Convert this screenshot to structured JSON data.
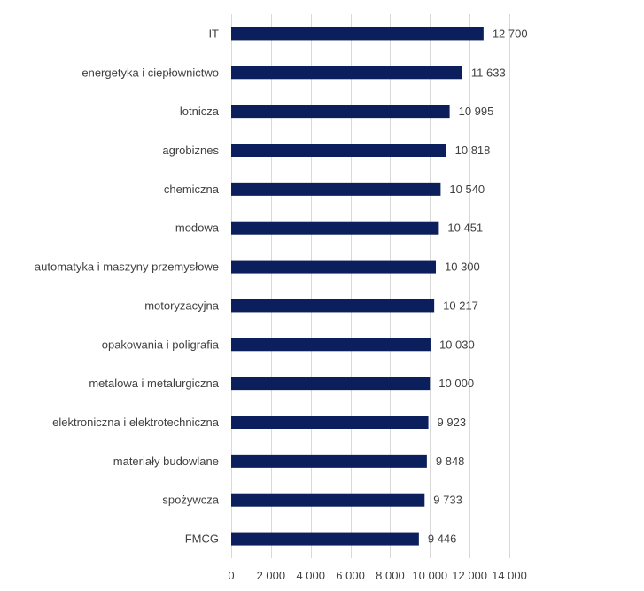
{
  "chart_data": {
    "type": "bar",
    "orientation": "horizontal",
    "title": "",
    "xlabel": "",
    "ylabel": "",
    "categories": [
      "IT",
      "energetyka i ciepłownictwo",
      "lotnicza",
      "agrobiznes",
      "chemiczna",
      "modowa",
      "automatyka i maszyny przemysłowe",
      "motoryzacyjna",
      "opakowania i poligrafia",
      "metalowa i metalurgiczna",
      "elektroniczna i elektrotechniczna",
      "materiały budowlane",
      "spożywcza",
      "FMCG"
    ],
    "values": [
      12700,
      11633,
      10995,
      10818,
      10540,
      10451,
      10300,
      10217,
      10030,
      10000,
      9923,
      9848,
      9733,
      9446
    ],
    "value_labels": [
      "12 700",
      "11 633",
      "10 995",
      "10 818",
      "10 540",
      "10 451",
      "10 300",
      "10 217",
      "10 030",
      "10 000",
      "9 923",
      "9 848",
      "9 733",
      "9 446"
    ],
    "xlim": [
      0,
      14000
    ],
    "xticks": [
      0,
      2000,
      4000,
      6000,
      8000,
      10000,
      12000,
      14000
    ],
    "xtick_labels": [
      "0",
      "2 000",
      "4 000",
      "6 000",
      "8 000",
      "10 000",
      "12 000",
      "14 000"
    ],
    "grid": true,
    "legend": "none",
    "bar_color": "#0b1f5c"
  }
}
